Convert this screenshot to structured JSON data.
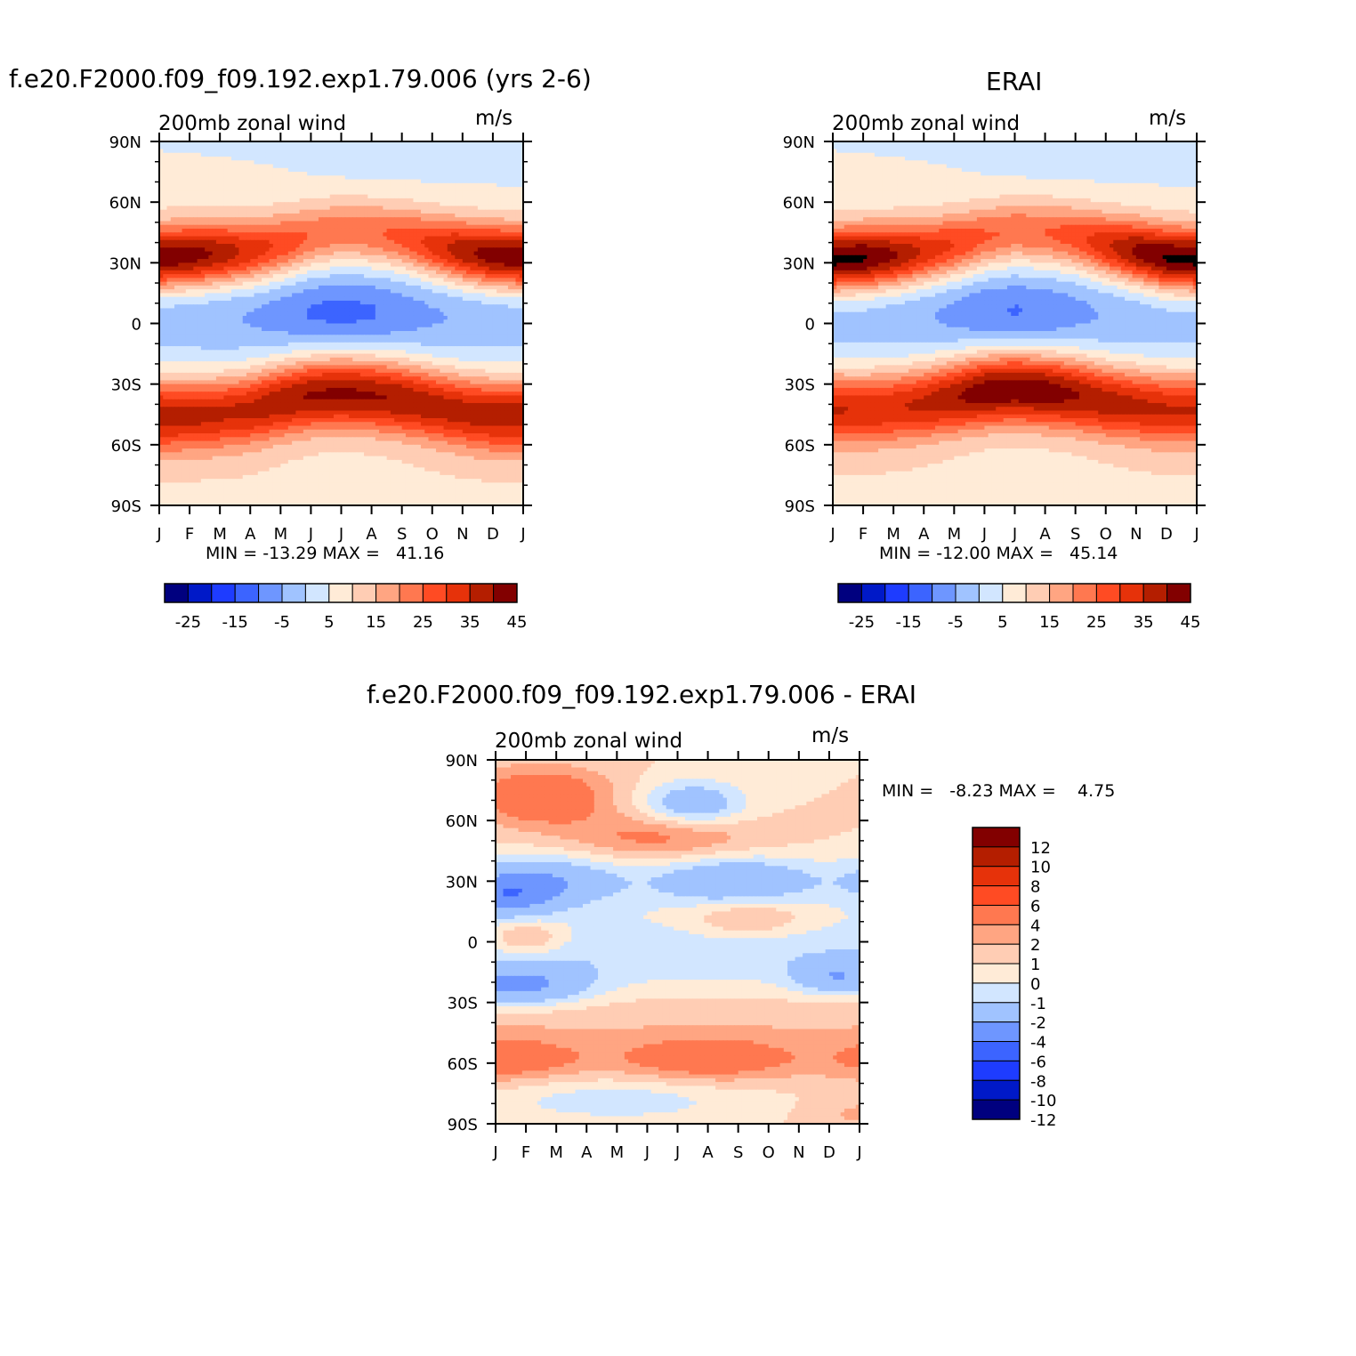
{
  "colors": {
    "abs_scale": [
      "#00007f",
      "#0019c8",
      "#1e3cff",
      "#3c64ff",
      "#6e96ff",
      "#a0c3ff",
      "#d2e6ff",
      "#ffebd7",
      "#ffcdb4",
      "#ffa582",
      "#ff7850",
      "#ff4b23",
      "#e6320a",
      "#b41e00",
      "#820000"
    ],
    "diff_scale": [
      "#00007f",
      "#0019c8",
      "#1e3cff",
      "#3c64ff",
      "#6e96ff",
      "#a0c3ff",
      "#d2e6ff",
      "#ffebd7",
      "#ffcdb4",
      "#ffa582",
      "#ff7850",
      "#ff4b23",
      "#e6320a",
      "#b41e00",
      "#820000"
    ]
  },
  "panels": {
    "model": {
      "title": "f.e20.F2000.f09_f09.192.exp1.79.006 (yrs 2-6)",
      "subtitle_left": "200mb zonal wind",
      "subtitle_right": "m/s",
      "stats": "MIN = -13.29 MAX =   41.16"
    },
    "obs": {
      "title": "ERAI",
      "subtitle_left": "200mb zonal wind",
      "subtitle_right": "m/s",
      "stats": "MIN = -12.00 MAX =   45.14"
    },
    "diff": {
      "title": "f.e20.F2000.f09_f09.192.exp1.79.006 - ERAI",
      "subtitle_left": "200mb zonal wind",
      "subtitle_right": "m/s",
      "stats": "MIN =   -8.23 MAX =    4.75"
    }
  },
  "chart_data": [
    {
      "type": "heatmap",
      "panel": "model",
      "x": [
        "J",
        "F",
        "M",
        "A",
        "M",
        "J",
        "J",
        "A",
        "S",
        "O",
        "N",
        "D",
        "J"
      ],
      "y": [
        "90N",
        "60N",
        "30N",
        "0",
        "30S",
        "60S",
        "90S"
      ],
      "y_values": [
        90,
        60,
        30,
        0,
        -30,
        -60,
        -90
      ],
      "ylim": [
        -90,
        90
      ],
      "colorbar_labels": [
        "-25",
        "-15",
        "-5",
        "5",
        "15",
        "25",
        "35",
        "45"
      ],
      "levels": [
        -30,
        -25,
        -20,
        -15,
        -10,
        -5,
        0,
        5,
        10,
        15,
        20,
        25,
        30,
        35,
        40,
        45
      ],
      "min": -13.29,
      "max": 41.16,
      "jet": {
        "nh_lat": [
          32,
          33,
          34,
          35,
          38,
          42,
          45,
          44,
          42,
          38,
          35,
          33,
          32
        ],
        "nh_peak": [
          41,
          40,
          36,
          30,
          25,
          20,
          18,
          19,
          22,
          28,
          35,
          40,
          41
        ],
        "sh_lat": [
          -45,
          -45,
          -44,
          -42,
          -38,
          -35,
          -34,
          -35,
          -37,
          -40,
          -43,
          -45,
          -45
        ],
        "sh_peak": [
          34,
          33,
          32,
          33,
          36,
          38,
          39,
          38,
          37,
          35,
          34,
          34,
          34
        ],
        "tropics_min": [
          -5,
          -5,
          -6,
          -7,
          -9,
          -12,
          -13,
          -12,
          -9,
          -7,
          -6,
          -5,
          -5
        ]
      }
    },
    {
      "type": "heatmap",
      "panel": "obs",
      "x": [
        "J",
        "F",
        "M",
        "A",
        "M",
        "J",
        "J",
        "A",
        "S",
        "O",
        "N",
        "D",
        "J"
      ],
      "y": [
        "90N",
        "60N",
        "30N",
        "0",
        "30S",
        "60S",
        "90S"
      ],
      "y_values": [
        90,
        60,
        30,
        0,
        -30,
        -60,
        -90
      ],
      "ylim": [
        -90,
        90
      ],
      "colorbar_labels": [
        "-25",
        "-15",
        "-5",
        "5",
        "15",
        "25",
        "35",
        "45"
      ],
      "levels": [
        -30,
        -25,
        -20,
        -15,
        -10,
        -5,
        0,
        5,
        10,
        15,
        20,
        25,
        30,
        35,
        40,
        45
      ],
      "min": -12.0,
      "max": 45.14,
      "jet": {
        "nh_lat": [
          31,
          32,
          33,
          35,
          38,
          42,
          45,
          44,
          42,
          38,
          35,
          32,
          31
        ],
        "nh_peak": [
          44,
          43,
          38,
          31,
          26,
          21,
          19,
          20,
          23,
          30,
          38,
          43,
          44
        ],
        "sh_lat": [
          -42,
          -42,
          -41,
          -39,
          -36,
          -33,
          -32,
          -33,
          -35,
          -38,
          -40,
          -42,
          -42
        ],
        "sh_peak": [
          32,
          31,
          31,
          33,
          37,
          41,
          42,
          41,
          38,
          35,
          33,
          32,
          32
        ],
        "tropics_min": [
          -4,
          -4,
          -5,
          -6,
          -8,
          -11,
          -12,
          -11,
          -8,
          -6,
          -5,
          -4,
          -4
        ]
      }
    },
    {
      "type": "heatmap",
      "panel": "diff",
      "x": [
        "J",
        "F",
        "M",
        "A",
        "M",
        "J",
        "J",
        "A",
        "S",
        "O",
        "N",
        "D",
        "J"
      ],
      "y": [
        "90N",
        "60N",
        "30N",
        "0",
        "30S",
        "60S",
        "90S"
      ],
      "y_values": [
        90,
        60,
        30,
        0,
        -30,
        -60,
        -90
      ],
      "ylim": [
        -90,
        90
      ],
      "colorbar_labels": [
        "12",
        "10",
        "8",
        "6",
        "4",
        "2",
        "1",
        "0",
        "-1",
        "-2",
        "-4",
        "-6",
        "-8",
        "-10",
        "-12"
      ],
      "levels": [
        -12,
        -10,
        -8,
        -6,
        -4,
        -2,
        -1,
        0,
        1,
        2,
        4,
        6,
        8,
        10,
        12
      ],
      "min": -8.23,
      "max": 4.75
    }
  ]
}
